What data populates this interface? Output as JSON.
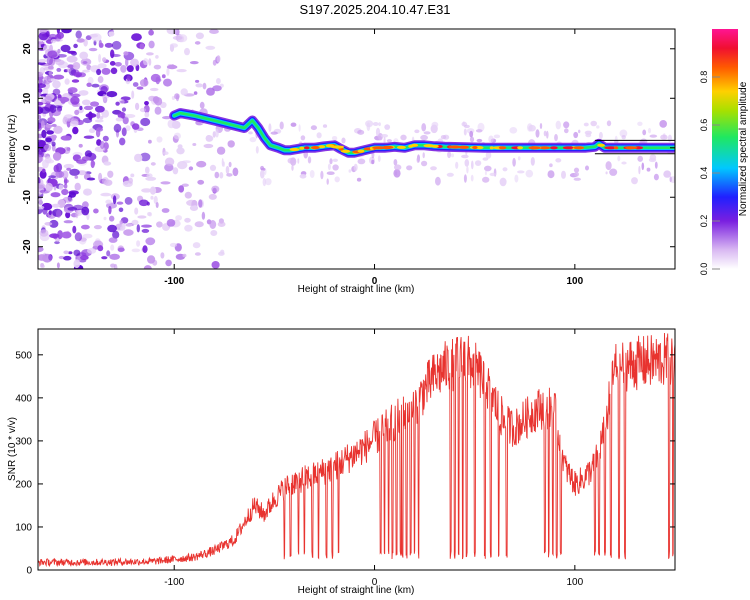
{
  "figure": {
    "title": "S197.2025.204.10.47.E31"
  },
  "chart_data": [
    {
      "type": "heatmap",
      "xlabel": "Height of straight line (km)",
      "ylabel": "Frequency (Hz)",
      "xlim": [
        -168,
        150
      ],
      "ylim": [
        -24.5,
        24
      ],
      "x_ticks": [
        -100,
        0,
        100
      ],
      "y_ticks": [
        -20,
        -10,
        0,
        10,
        20
      ],
      "grid": false,
      "colorbar": {
        "label": "Normalized spectral amplitude",
        "range": [
          0,
          1
        ],
        "ticks": [
          0.0,
          0.2,
          0.4,
          0.6,
          0.8
        ],
        "colormap": "rainbow (purple-blue-cyan-green-yellow-red-magenta)"
      },
      "ridge": {
        "description": "narrow-band signal track",
        "x": [
          -168,
          -100,
          -97,
          -90,
          -85,
          -80,
          -75,
          -70,
          -65,
          -61,
          -58,
          -55,
          -52,
          -48,
          -45,
          -42,
          -35,
          -30,
          -25,
          -20,
          -17,
          -13,
          -10,
          -5,
          0,
          5,
          10,
          15,
          20,
          25,
          30,
          35,
          45,
          55,
          65,
          75,
          85,
          95,
          105,
          110,
          112,
          115,
          125,
          150
        ],
        "y": [
          null,
          6.5,
          7,
          6.5,
          6,
          5.5,
          5,
          4.5,
          4,
          5.5,
          4,
          2,
          0.5,
          0,
          -0.5,
          -0.5,
          0,
          0,
          0.3,
          0.5,
          -0.2,
          -1,
          -1,
          -0.5,
          0,
          0,
          0.2,
          0,
          0.5,
          0.5,
          0.3,
          0.2,
          0.1,
          0,
          0,
          0,
          0,
          0,
          0,
          0.2,
          0.8,
          0,
          0,
          0
        ]
      },
      "noise_region": {
        "x_range": [
          -168,
          -80
        ],
        "description": "scattered low-amplitude noise across all frequencies"
      }
    },
    {
      "type": "line",
      "xlabel": "Height of straight line (km)",
      "ylabel": "SNR (10 * v/v)",
      "xlim": [
        -168,
        150
      ],
      "ylim": [
        0,
        560
      ],
      "x_ticks": [
        -100,
        0,
        100
      ],
      "y_ticks": [
        0,
        100,
        200,
        300,
        400,
        500
      ],
      "grid": false,
      "series_color": "#e8332f",
      "x": [
        -168,
        -140,
        -110,
        -90,
        -80,
        -70,
        -65,
        -60,
        -55,
        -50,
        -45,
        -40,
        -30,
        -20,
        -10,
        -5,
        0,
        10,
        20,
        25,
        30,
        35,
        40,
        45,
        50,
        55,
        60,
        65,
        70,
        75,
        80,
        85,
        90,
        95,
        100,
        105,
        110,
        115,
        120,
        130,
        140,
        150
      ],
      "y": [
        18,
        18,
        20,
        30,
        45,
        70,
        110,
        150,
        130,
        165,
        190,
        205,
        220,
        240,
        270,
        285,
        305,
        345,
        380,
        420,
        450,
        470,
        480,
        490,
        470,
        440,
        390,
        340,
        330,
        350,
        370,
        380,
        370,
        240,
        200,
        215,
        245,
        330,
        470,
        480,
        485,
        490
      ],
      "dropouts_x": [
        -45,
        -42,
        -38,
        -35,
        -31,
        -28,
        -24,
        -21,
        -18,
        3,
        5,
        7,
        9,
        11,
        13,
        14,
        16,
        18,
        20,
        22,
        38,
        40,
        42,
        44,
        46,
        50,
        55,
        58,
        62,
        66,
        85,
        87,
        89,
        91,
        93,
        110,
        112,
        115,
        118,
        122,
        125,
        147,
        149
      ]
    }
  ]
}
